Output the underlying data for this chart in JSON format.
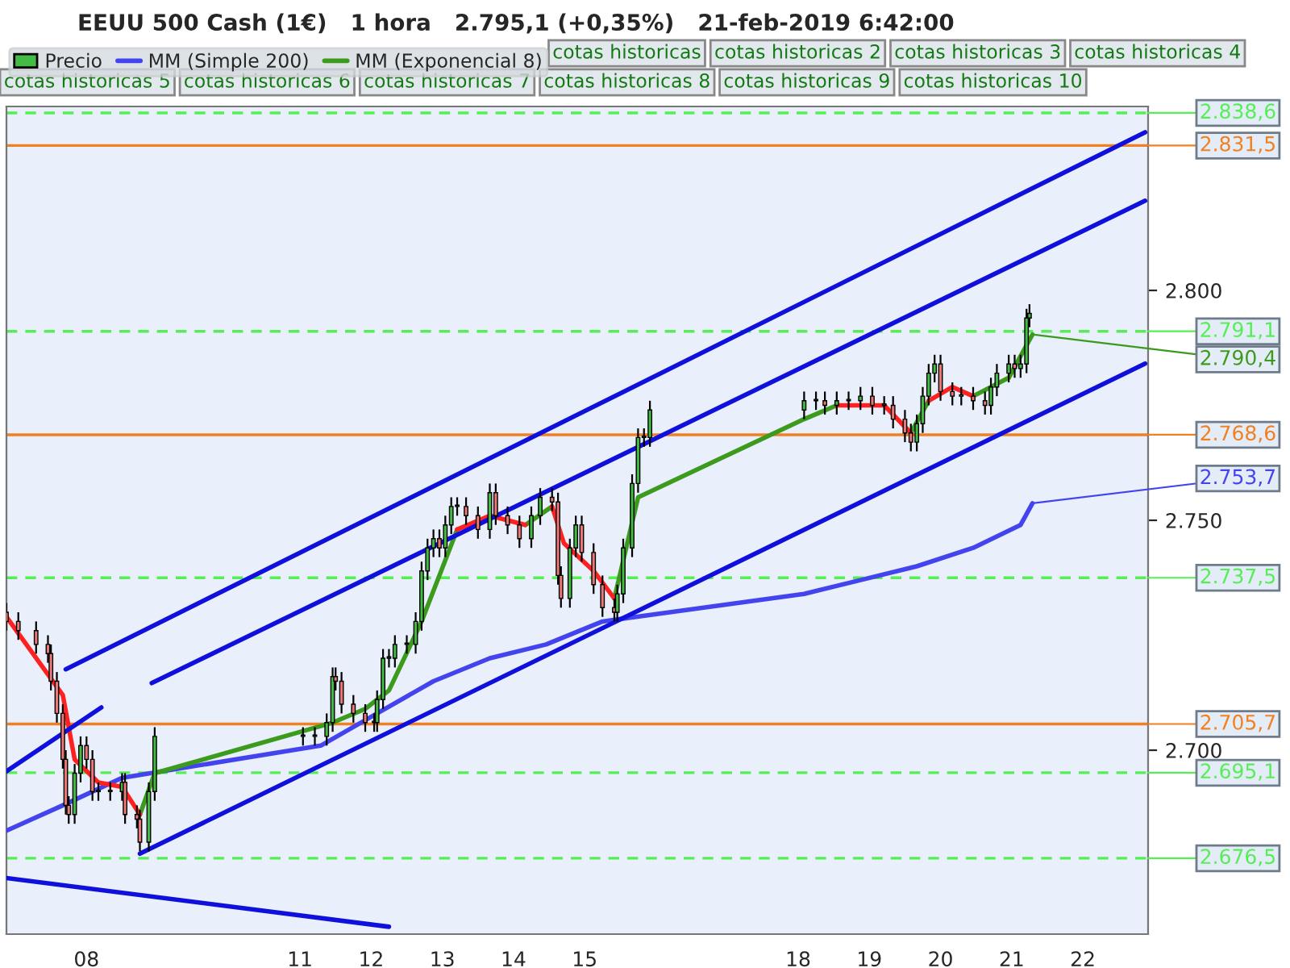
{
  "chart_data": {
    "type": "candlestick",
    "title": "EEUU 500 Cash (1€)   1 hora   2.795,1 (+0,35%)   21-feb-2019 6:42:00",
    "series": [
      {
        "name": "Precio",
        "color": "#44bb44",
        "colors": [
          "#ee7777",
          "#ee7777",
          "#ee7777",
          "#ee7777",
          "#ee7777",
          "#ee7777",
          "#ee7777",
          "#ee7777",
          "#ee7777",
          "#44bb44",
          "#44bb44",
          "#ee7777",
          "#ee7777",
          "#44bb44",
          "#44bb44",
          "#44bb44",
          "#ee7777",
          "#ee7777",
          "#ee7777",
          "#44bb44",
          "#44bb44",
          "#44bb44",
          "#44bb44",
          "#44bb44",
          "#44bb44",
          "#ee7777",
          "#ee7777",
          "#ee7777",
          "#ee7777",
          "#44bb44",
          "#44bb44",
          "#44bb44",
          "#44bb44",
          "#44bb44",
          "#44bb44",
          "#44bb44",
          "#44bb44",
          "#44bb44",
          "#44bb44",
          "#ee7777",
          "#44bb44",
          "#44bb44",
          "#44bb44",
          "#ee7777",
          "#ee7777",
          "#44bb44",
          "#ee7777",
          "#ee7777",
          "#ee7777",
          "#44bb44",
          "#44bb44",
          "#ee7777",
          "#ee7777",
          "#ee7777",
          "#44bb44",
          "#44bb44",
          "#ee7777",
          "#ee7777",
          "#ee7777",
          "#ee7777",
          "#44bb44",
          "#44bb44",
          "#44bb44",
          "#44bb44",
          "#44bb44",
          "#44bb44",
          "#44bb44",
          "#44bb44",
          "#ee7777",
          "#44bb44",
          "#44bb44",
          "#44bb44",
          "#ee7777",
          "#44bb44",
          "#ee7777",
          "#ee7777",
          "#ee7777",
          "#44bb44",
          "#44bb44",
          "#44bb44",
          "#44bb44",
          "#ee7777",
          "#ee7777",
          "#44bb44",
          "#ee7777",
          "#ee7777",
          "#44bb44",
          "#44bb44",
          "#44bb44",
          "#ee7777",
          "#44bb44",
          "#44bb44",
          "#44bb44"
        ],
        "x": [
          "2019-02-06T21:00",
          "2019-02-07T01:00",
          "2019-02-07T07:00",
          "2019-02-07T11:00",
          "2019-02-07T12:00",
          "2019-02-07T14:00",
          "2019-02-07T16:00",
          "2019-02-07T17:00",
          "2019-02-07T18:00",
          "2019-02-07T20:00",
          "2019-02-07T22:00",
          "2019-02-08T00:00",
          "2019-02-08T02:00",
          "2019-02-08T04:00",
          "2019-02-08T08:00",
          "2019-02-08T12:00",
          "2019-02-08T13:00",
          "2019-02-08T17:00",
          "2019-02-08T18:00",
          "2019-02-08T21:00",
          "2019-02-08T23:00",
          "2019-02-11T01:00",
          "2019-02-11T05:00",
          "2019-02-11T09:00",
          "2019-02-11T11:00",
          "2019-02-11T12:00",
          "2019-02-11T14:00",
          "2019-02-11T18:00",
          "2019-02-11T22:00",
          "2019-02-12T01:00",
          "2019-02-12T02:00",
          "2019-02-12T04:00",
          "2019-02-12T06:00",
          "2019-02-12T08:00",
          "2019-02-12T12:00",
          "2019-02-12T15:00",
          "2019-02-12T17:00",
          "2019-02-12T19:00",
          "2019-02-12T21:00",
          "2019-02-12T23:00",
          "2019-02-13T01:00",
          "2019-02-13T03:00",
          "2019-02-13T05:00",
          "2019-02-13T08:00",
          "2019-02-13T12:00",
          "2019-02-13T16:00",
          "2019-02-13T18:00",
          "2019-02-13T22:00",
          "2019-02-14T02:00",
          "2019-02-14T06:00",
          "2019-02-14T09:00",
          "2019-02-14T13:00",
          "2019-02-14T15:00",
          "2019-02-14T16:00",
          "2019-02-14T19:00",
          "2019-02-14T21:00",
          "2019-02-14T23:00",
          "2019-02-15T03:00",
          "2019-02-15T06:00",
          "2019-02-15T10:00",
          "2019-02-15T11:00",
          "2019-02-15T13:00",
          "2019-02-15T16:00",
          "2019-02-15T18:00",
          "2019-02-15T20:00",
          "2019-02-15T22:00",
          "2019-02-18T02:00",
          "2019-02-18T06:00",
          "2019-02-18T09:00",
          "2019-02-18T13:00",
          "2019-02-18T17:00",
          "2019-02-18T21:00",
          "2019-02-19T01:00",
          "2019-02-19T05:00",
          "2019-02-19T08:00",
          "2019-02-19T12:00",
          "2019-02-19T14:00",
          "2019-02-19T16:00",
          "2019-02-19T18:00",
          "2019-02-19T20:00",
          "2019-02-19T22:00",
          "2019-02-20T00:00",
          "2019-02-20T04:00",
          "2019-02-20T07:00",
          "2019-02-20T11:00",
          "2019-02-20T15:00",
          "2019-02-20T17:00",
          "2019-02-20T19:00",
          "2019-02-20T23:00",
          "2019-02-21T01:00",
          "2019-02-21T03:00",
          "2019-02-21T05:00",
          "2019-02-21T06:00"
        ],
        "ohlc": [
          [
            2730,
            2732,
            2726,
            2728
          ],
          [
            2728,
            2730,
            2724,
            2726
          ],
          [
            2726,
            2728,
            2721,
            2723
          ],
          [
            2723,
            2725,
            2719,
            2721
          ],
          [
            2721,
            2723,
            2713,
            2715
          ],
          [
            2715,
            2717,
            2706,
            2708
          ],
          [
            2708,
            2710,
            2696,
            2698
          ],
          [
            2698,
            2700,
            2686,
            2688
          ],
          [
            2688,
            2690,
            2684,
            2686
          ],
          [
            2686,
            2697,
            2684,
            2695
          ],
          [
            2695,
            2703,
            2693,
            2701
          ],
          [
            2701,
            2703,
            2696,
            2698
          ],
          [
            2698,
            2700,
            2689,
            2691
          ],
          [
            2691,
            2693,
            2689,
            2691
          ],
          [
            2691,
            2693,
            2689,
            2691
          ],
          [
            2691,
            2695,
            2689,
            2693
          ],
          [
            2693,
            2695,
            2684,
            2686
          ],
          [
            2686,
            2688,
            2683,
            2685
          ],
          [
            2685,
            2687,
            2678,
            2680
          ],
          [
            2680,
            2693,
            2678,
            2691
          ],
          [
            2691,
            2705,
            2689,
            2703
          ],
          [
            2703,
            2705,
            2701,
            2703
          ],
          [
            2703,
            2705,
            2701,
            2703
          ],
          [
            2703,
            2708,
            2701,
            2706
          ],
          [
            2706,
            2718,
            2704,
            2716
          ],
          [
            2716,
            2718,
            2713,
            2715
          ],
          [
            2715,
            2717,
            2708,
            2710
          ],
          [
            2710,
            2712,
            2706,
            2708
          ],
          [
            2708,
            2710,
            2704,
            2706
          ],
          [
            2706,
            2708,
            2704,
            2706
          ],
          [
            2706,
            2713,
            2704,
            2711
          ],
          [
            2711,
            2722,
            2709,
            2720
          ],
          [
            2720,
            2722,
            2718,
            2720
          ],
          [
            2720,
            2725,
            2718,
            2723
          ],
          [
            2723,
            2725,
            2721,
            2723
          ],
          [
            2723,
            2730,
            2721,
            2728
          ],
          [
            2728,
            2741,
            2726,
            2739
          ],
          [
            2739,
            2746,
            2737,
            2744
          ],
          [
            2744,
            2748,
            2742,
            2746
          ],
          [
            2746,
            2748,
            2742,
            2744
          ],
          [
            2744,
            2751,
            2742,
            2749
          ],
          [
            2749,
            2755,
            2747,
            2753
          ],
          [
            2753,
            2755,
            2751,
            2753
          ],
          [
            2753,
            2755,
            2749,
            2751
          ],
          [
            2751,
            2753,
            2746,
            2748
          ],
          [
            2748,
            2758,
            2746,
            2756
          ],
          [
            2756,
            2758,
            2749,
            2751
          ],
          [
            2751,
            2753,
            2747,
            2749
          ],
          [
            2749,
            2751,
            2744,
            2746
          ],
          [
            2746,
            2753,
            2744,
            2751
          ],
          [
            2751,
            2757,
            2749,
            2755
          ],
          [
            2755,
            2757,
            2752,
            2754
          ],
          [
            2754,
            2756,
            2736,
            2738
          ],
          [
            2738,
            2740,
            2731,
            2733
          ],
          [
            2733,
            2746,
            2731,
            2744
          ],
          [
            2744,
            2751,
            2742,
            2749
          ],
          [
            2749,
            2751,
            2741,
            2743
          ],
          [
            2743,
            2745,
            2734,
            2736
          ],
          [
            2736,
            2738,
            2729,
            2731
          ],
          [
            2731,
            2733,
            2728,
            2730
          ],
          [
            2730,
            2736,
            2728,
            2734
          ],
          [
            2734,
            2746,
            2732,
            2744
          ],
          [
            2744,
            2760,
            2742,
            2758
          ],
          [
            2758,
            2770,
            2756,
            2768
          ],
          [
            2768,
            2770,
            2766,
            2768
          ],
          [
            2768,
            2776,
            2766,
            2774
          ],
          [
            2774,
            2778,
            2772,
            2776
          ],
          [
            2776,
            2778,
            2774,
            2776
          ],
          [
            2776,
            2778,
            2773,
            2775
          ],
          [
            2775,
            2778,
            2773,
            2776
          ],
          [
            2776,
            2778,
            2774,
            2776
          ],
          [
            2776,
            2779,
            2774,
            2777
          ],
          [
            2777,
            2779,
            2773,
            2775
          ],
          [
            2775,
            2777,
            2773,
            2775
          ],
          [
            2775,
            2777,
            2770,
            2772
          ],
          [
            2772,
            2774,
            2767,
            2769
          ],
          [
            2769,
            2771,
            2765,
            2767
          ],
          [
            2767,
            2773,
            2765,
            2771
          ],
          [
            2771,
            2779,
            2769,
            2777
          ],
          [
            2777,
            2784,
            2775,
            2782
          ],
          [
            2782,
            2786,
            2780,
            2784
          ],
          [
            2784,
            2786,
            2776,
            2778
          ],
          [
            2778,
            2780,
            2775,
            2777
          ],
          [
            2777,
            2779,
            2775,
            2777
          ],
          [
            2777,
            2779,
            2774,
            2776
          ],
          [
            2776,
            2778,
            2773,
            2775
          ],
          [
            2775,
            2781,
            2773,
            2779
          ],
          [
            2779,
            2784,
            2777,
            2782
          ],
          [
            2782,
            2786,
            2780,
            2784
          ],
          [
            2784,
            2786,
            2781,
            2783
          ],
          [
            2783,
            2786,
            2781,
            2784
          ],
          [
            2784,
            2796,
            2782,
            2794
          ],
          [
            2794,
            2797,
            2792,
            2795
          ]
        ]
      },
      {
        "name": "MM (Simple 200)",
        "type": "line",
        "color": "#4444ee",
        "x": [
          "2019-02-06T21:00",
          "2019-02-07T16:00",
          "2019-02-08T12:00",
          "2019-02-11T07:00",
          "2019-02-12T02:00",
          "2019-02-12T21:00",
          "2019-02-13T16:00",
          "2019-02-14T11:00",
          "2019-02-15T06:00",
          "2019-02-18T02:00",
          "2019-02-18T21:00",
          "2019-02-19T16:00",
          "2019-02-20T11:00",
          "2019-02-21T03:00",
          "2019-02-21T07:00"
        ],
        "values": [
          2682.5,
          2688,
          2694,
          2701,
          2708,
          2715,
          2720,
          2723,
          2728,
          2734,
          2737,
          2740,
          2744,
          2749,
          2753.7
        ]
      },
      {
        "name": "MM (Exponencial 8)",
        "type": "line",
        "color": "#3c9a1c",
        "x": [
          "2019-02-08T18:00",
          "2019-02-08T23:00",
          "2019-02-11T11:00",
          "2019-02-11T22:00",
          "2019-02-12T06:00",
          "2019-02-12T17:00",
          "2019-02-13T05:00",
          "2019-02-13T16:00",
          "2019-02-14T04:00",
          "2019-02-14T13:00",
          "2019-02-14T17:00",
          "2019-02-15T03:00",
          "2019-02-15T10:00",
          "2019-02-15T18:00",
          "2019-02-18T02:00",
          "2019-02-18T13:00",
          "2019-02-19T05:00",
          "2019-02-19T14:00",
          "2019-02-19T20:00",
          "2019-02-20T04:00",
          "2019-02-20T11:00",
          "2019-02-20T23:00",
          "2019-02-21T07:00"
        ],
        "values": [
          2686,
          2695,
          2706,
          2709,
          2713,
          2728,
          2748,
          null,
          2749,
          2753,
          null,
          null,
          2733,
          2755,
          2772,
          2775,
          null,
          2769,
          2776,
          null,
          2777,
          2781,
          2790.4
        ]
      },
      {
        "type": "line",
        "color": "#ff2020",
        "x": [
          "2019-02-06T21:00",
          "2019-02-07T16:00",
          "2019-02-07T20:00",
          "2019-02-08T04:00",
          "2019-02-08T12:00",
          "2019-02-08T18:00"
        ],
        "values": [
          2729,
          2712,
          2698,
          2693,
          2692,
          2686
        ]
      },
      {
        "type": "line",
        "color": "#ff2020",
        "x": [
          "2019-02-13T05:00",
          "2019-02-13T16:00",
          "2019-02-14T04:00"
        ],
        "values": [
          2748,
          2751,
          2749
        ]
      },
      {
        "type": "line",
        "color": "#ff2020",
        "x": [
          "2019-02-14T13:00",
          "2019-02-14T17:00",
          "2019-02-15T03:00",
          "2019-02-15T10:00"
        ],
        "values": [
          2753,
          2745,
          2739,
          2733
        ]
      },
      {
        "type": "line",
        "color": "#ff2020",
        "x": [
          "2019-02-18T13:00",
          "2019-02-19T05:00",
          "2019-02-19T14:00"
        ],
        "values": [
          2775,
          2775,
          2769
        ]
      },
      {
        "type": "line",
        "color": "#ff2020",
        "x": [
          "2019-02-19T20:00",
          "2019-02-20T04:00",
          "2019-02-20T11:00"
        ],
        "values": [
          2776,
          2779,
          2777
        ]
      },
      {
        "type": "line",
        "color": "#1010dd",
        "x": [
          "2019-02-07T17:00",
          "2019-02-22T21:00"
        ],
        "values": [
          2717.6,
          2834.4
        ]
      },
      {
        "type": "line",
        "color": "#1010dd",
        "x": [
          "2019-02-08T22:00",
          "2019-02-22T21:00"
        ],
        "values": [
          2714.6,
          2819.5
        ]
      },
      {
        "type": "line",
        "color": "#1010dd",
        "x": [
          "2019-02-08T18:00",
          "2019-02-22T21:00"
        ],
        "values": [
          2677.5,
          2784.1
        ]
      },
      {
        "type": "line",
        "color": "#1010dd",
        "x": [
          "2019-02-06T21:00",
          "2019-02-08T05:00"
        ],
        "values": [
          2695.4,
          2709.3
        ]
      },
      {
        "type": "line",
        "color": "#1010dd",
        "x": [
          "2019-02-06T21:00",
          "2019-02-12T06:00"
        ],
        "values": [
          2672.2,
          2661.6
        ]
      }
    ],
    "ref_lines": [
      {
        "axis": "y",
        "value": 2838.6,
        "label": "2.838,6",
        "color": "#55ee55",
        "line_style": "dashed"
      },
      {
        "axis": "y",
        "value": 2831.5,
        "label": "2.831,5",
        "color": "#f08020",
        "line_style": "solid"
      },
      {
        "axis": "y",
        "value": 2791.1,
        "label": "2.791,1",
        "color": "#55ee55",
        "line_style": "dashed"
      },
      {
        "axis": "y",
        "value": 2768.6,
        "label": "2.768,6",
        "color": "#f08020",
        "line_style": "solid"
      },
      {
        "axis": "y",
        "value": 2737.5,
        "label": "2.737,5",
        "color": "#55ee55",
        "line_style": "dashed"
      },
      {
        "axis": "y",
        "value": 2705.7,
        "label": "2.705,7",
        "color": "#f08020",
        "line_style": "solid"
      },
      {
        "axis": "y",
        "value": 2695.1,
        "label": "2.695,1",
        "color": "#55ee55",
        "line_style": "dashed"
      },
      {
        "axis": "y",
        "value": 2676.5,
        "label": "2.676,5",
        "color": "#55ee55",
        "line_style": "dashed"
      }
    ],
    "annotations": [
      {
        "text": "2.790,4",
        "x": "2019-02-21T07:00",
        "y": 2790.4
      },
      {
        "text": "2.753,7",
        "x": "2019-02-21T07:00",
        "y": 2753.7
      },
      "cotas historicas",
      "cotas historicas 2",
      "cotas historicas 3",
      "cotas historicas 4",
      "cotas historicas 5",
      "cotas historicas 6",
      "cotas historicas 7",
      "cotas historicas 8",
      "cotas historicas 9",
      "cotas historicas 10"
    ],
    "xlim": [
      "2019-02-06T21:00",
      "2019-02-22T22:00"
    ],
    "ylim": [
      2660,
      2840
    ],
    "xticks": [
      {
        "value": "2019-02-08",
        "label": "08"
      },
      {
        "value": "2019-02-11",
        "label": "11"
      },
      {
        "value": "2019-02-12",
        "label": "12"
      },
      {
        "value": "2019-02-13",
        "label": "13"
      },
      {
        "value": "2019-02-14",
        "label": "14"
      },
      {
        "value": "2019-02-15",
        "label": "15"
      },
      {
        "value": "2019-02-18",
        "label": "18"
      },
      {
        "value": "2019-02-19",
        "label": "19"
      },
      {
        "value": "2019-02-20",
        "label": "20"
      },
      {
        "value": "2019-02-21",
        "label": "21"
      },
      {
        "value": "2019-02-22",
        "label": "22"
      }
    ],
    "yticks": [
      {
        "value": 2700,
        "label": "2.700"
      },
      {
        "value": 2750,
        "label": "2.750"
      },
      {
        "value": 2800,
        "label": "2.800"
      }
    ],
    "legend": "top left"
  }
}
